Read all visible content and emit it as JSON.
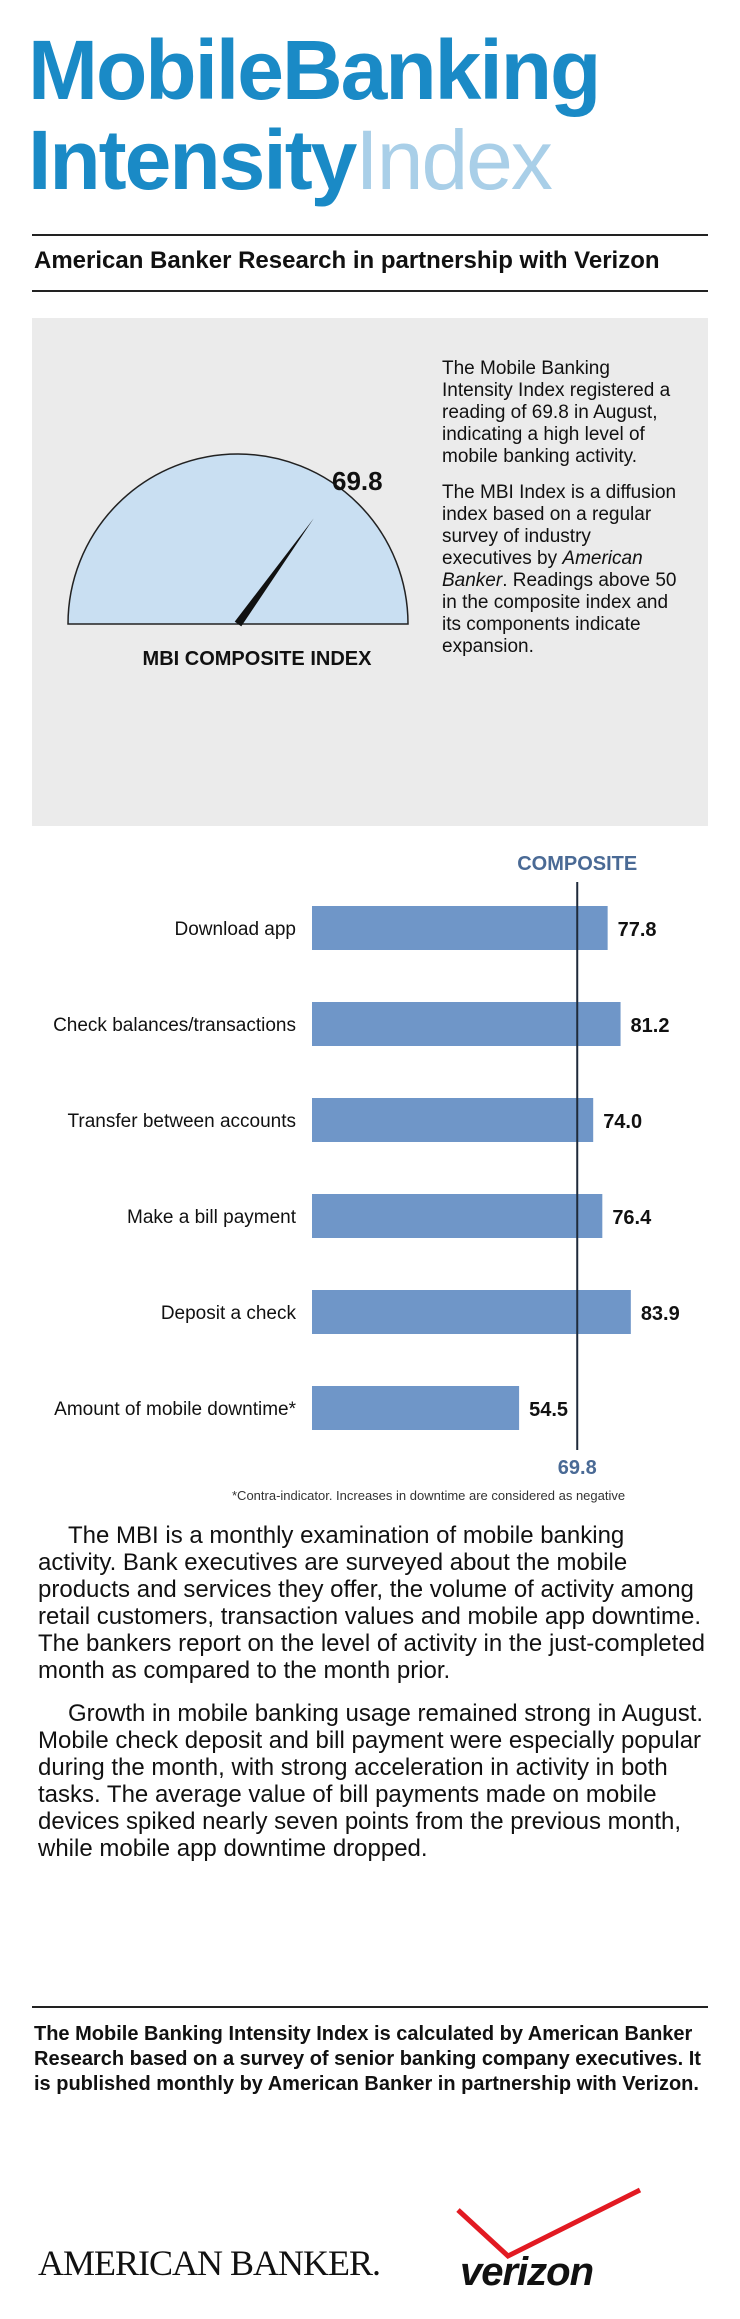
{
  "header": {
    "title_line1": "MobileBanking",
    "title_line2_dark": "Intensity",
    "title_line2_light": "Index",
    "subtitle": "American Banker Research in partnership with Verizon"
  },
  "gauge": {
    "value": 69.8,
    "value_label": "69.8",
    "caption": "MBI COMPOSITE INDEX",
    "range": [
      0,
      100
    ],
    "fill_color": "#c9dff2",
    "needle_color": "#111111"
  },
  "summary": {
    "para1": "The Mobile Banking Intensity Index registered a reading of 69.8 in August, indicating a high level of mobile banking activity.",
    "para2_before": "The MBI Index is a diffusion index based on a regular survey of industry executives by ",
    "para2_italic": "American Banker",
    "para2_after": ". Readings above 50 in the composite index and its components indicate expansion."
  },
  "chart_data": {
    "type": "bar",
    "orientation": "horizontal",
    "categories": [
      "Download app",
      "Check balances/transactions",
      "Transfer between accounts",
      "Make a bill payment",
      "Deposit a check",
      "Amount of mobile downtime*"
    ],
    "values": [
      77.8,
      81.2,
      74.0,
      76.4,
      83.9,
      54.5
    ],
    "value_labels": [
      "77.8",
      "81.2",
      "74.0",
      "76.4",
      "83.9",
      "54.5"
    ],
    "reference_line": {
      "label": "COMPOSITE",
      "value": 69.8,
      "value_label": "69.8"
    },
    "note": "*Contra-indicator. Increases in downtime are considered as negative",
    "bar_color": "#6f96c8",
    "reference_color": "#4a6a95"
  },
  "body": {
    "para1": "The MBI is a monthly examination of mobile banking activity. Bank executives are surveyed about the mobile products and services they offer, the volume of activity among retail customers, transaction values and mobile app downtime. The bankers report on the level of activity in the just-completed month as compared to the month prior.",
    "para2": "Growth in mobile banking usage remained strong in August. Mobile check deposit and bill payment were especially popular during the month, with strong acceleration in activity in both tasks. The average value of bill payments made on mobile devices spiked nearly seven points from the previous month, while mobile app downtime dropped."
  },
  "footer": {
    "about": "The Mobile Banking Intensity Index is calculated by American Banker Research based on a survey of senior banking company executives. It is published monthly by American Banker in partnership with Verizon.",
    "logo_american_banker": "AMERICAN BANKER.",
    "logo_verizon": "verizon",
    "verizon_check_color": "#e21a22"
  }
}
